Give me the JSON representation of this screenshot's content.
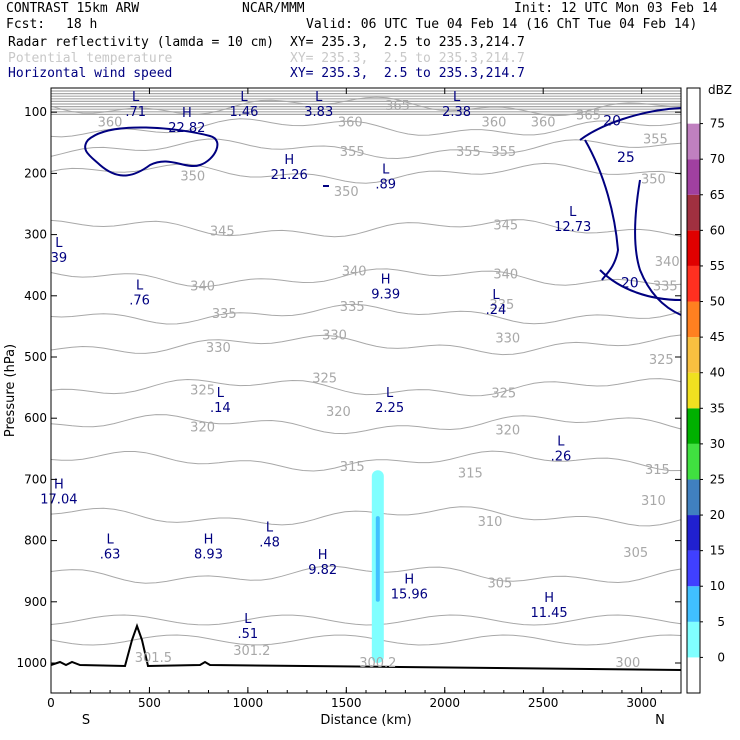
{
  "header": {
    "model": "CONTRAST 15km ARW",
    "center": "NCAR/MMM",
    "init": "Init: 12 UTC Mon 03 Feb 14",
    "fcst_label": "Fcst:",
    "fcst_value": "18 h",
    "valid": "Valid: 06 UTC Tue 04 Feb 14 (16 ChT Tue 04 Feb 14)"
  },
  "fields": [
    {
      "name": "Radar reflectivity (lamda = 10 cm)",
      "xy": "XY= 235.3,  2.5 to 235.3,214.7",
      "color": "#000000"
    },
    {
      "name": "Potential temperature",
      "xy": "XY= 235.3,  2.5 to 235.3,214.7",
      "color": "#c8c8c8"
    },
    {
      "name": "Horizontal wind speed",
      "xy": "XY= 235.3,  2.5 to 235.3,214.7",
      "color": "#000080"
    }
  ],
  "chart_data": {
    "type": "cross-section",
    "xlabel": "Distance (km)",
    "ylabel": "Pressure (hPa)",
    "x_ticks": [
      0,
      500,
      1000,
      1500,
      2000,
      2500,
      3000
    ],
    "y_ticks": [
      100,
      200,
      300,
      400,
      500,
      600,
      700,
      800,
      900,
      1000
    ],
    "xlim": [
      0,
      3200
    ],
    "ylim": [
      1050,
      50
    ],
    "x_ends": {
      "left": "S",
      "right": "N"
    },
    "colorbar": {
      "unit": "dBZ",
      "levels": [
        "0",
        "5",
        "10",
        "15",
        "20",
        "25",
        "30",
        "35",
        "40",
        "45",
        "50",
        "55",
        "60",
        "65",
        "70",
        "75"
      ],
      "colors": [
        "#ffffff",
        "#80ffff",
        "#40c0ff",
        "#4040ff",
        "#2020d0",
        "#4080c0",
        "#40e040",
        "#00b000",
        "#f0e020",
        "#f8c040",
        "#ff8020",
        "#ff3020",
        "#e00000",
        "#a03040",
        "#a040a0",
        "#c080c0",
        "#ffffff"
      ]
    },
    "theta_contours": [
      {
        "label": "365",
        "p": 90
      },
      {
        "label": "360",
        "p": 125
      },
      {
        "label": "355",
        "p": 160
      },
      {
        "label": "350",
        "p": 200
      },
      {
        "label": "345",
        "p": 290
      },
      {
        "label": "340",
        "p": 370
      },
      {
        "label": "335",
        "p": 430
      },
      {
        "label": "330",
        "p": 480
      },
      {
        "label": "325",
        "p": 550
      },
      {
        "label": "320",
        "p": 610
      },
      {
        "label": "315",
        "p": 670
      },
      {
        "label": "310",
        "p": 760
      },
      {
        "label": "305",
        "p": 855
      },
      {
        "label": "301.5",
        "p": 990
      },
      {
        "label": "301.2",
        "p": 975
      },
      {
        "label": "300.2",
        "p": 995
      },
      {
        "label": "300",
        "p": 1000
      }
    ],
    "theta_labels": [
      {
        "text": "360",
        "x": 300,
        "p": 117
      },
      {
        "text": "360",
        "x": 1520,
        "p": 117
      },
      {
        "text": "365",
        "x": 1760,
        "p": 90
      },
      {
        "text": "360",
        "x": 2250,
        "p": 117
      },
      {
        "text": "360",
        "x": 2500,
        "p": 117
      },
      {
        "text": "365",
        "x": 2730,
        "p": 105
      },
      {
        "text": "355",
        "x": 1530,
        "p": 165
      },
      {
        "text": "355",
        "x": 2120,
        "p": 165
      },
      {
        "text": "355",
        "x": 2300,
        "p": 165
      },
      {
        "text": "350",
        "x": 720,
        "p": 205
      },
      {
        "text": "350",
        "x": 1500,
        "p": 230
      },
      {
        "text": "345",
        "x": 870,
        "p": 295
      },
      {
        "text": "345",
        "x": 2310,
        "p": 285
      },
      {
        "text": "340",
        "x": 770,
        "p": 385
      },
      {
        "text": "340",
        "x": 1540,
        "p": 360
      },
      {
        "text": "340",
        "x": 2310,
        "p": 365
      },
      {
        "text": "335",
        "x": 880,
        "p": 430
      },
      {
        "text": "335",
        "x": 1530,
        "p": 418
      },
      {
        "text": "335",
        "x": 2290,
        "p": 415
      },
      {
        "text": "330",
        "x": 850,
        "p": 485
      },
      {
        "text": "330",
        "x": 1440,
        "p": 465
      },
      {
        "text": "330",
        "x": 2320,
        "p": 470
      },
      {
        "text": "325",
        "x": 770,
        "p": 555
      },
      {
        "text": "325",
        "x": 1390,
        "p": 535
      },
      {
        "text": "325",
        "x": 2300,
        "p": 560
      },
      {
        "text": "320",
        "x": 770,
        "p": 615
      },
      {
        "text": "320",
        "x": 1460,
        "p": 590
      },
      {
        "text": "320",
        "x": 2320,
        "p": 620
      },
      {
        "text": "315",
        "x": 1530,
        "p": 680
      },
      {
        "text": "315",
        "x": 2130,
        "p": 690
      },
      {
        "text": "310",
        "x": 2230,
        "p": 770
      },
      {
        "text": "305",
        "x": 2280,
        "p": 870
      },
      {
        "text": "301.5",
        "x": 520,
        "p": 992
      },
      {
        "text": "301.2",
        "x": 1020,
        "p": 980
      },
      {
        "text": "300.2",
        "x": 1660,
        "p": 1000
      },
      {
        "text": "300",
        "x": 2930,
        "p": 1000
      },
      {
        "text": "355",
        "x": 3070,
        "p": 145
      },
      {
        "text": "350",
        "x": 3060,
        "p": 210
      },
      {
        "text": "340",
        "x": 3130,
        "p": 345
      },
      {
        "text": "335",
        "x": 3120,
        "p": 385
      },
      {
        "text": "325",
        "x": 3100,
        "p": 505
      },
      {
        "text": "315",
        "x": 3080,
        "p": 685
      },
      {
        "text": "310",
        "x": 3060,
        "p": 735
      },
      {
        "text": "305",
        "x": 2970,
        "p": 820
      }
    ],
    "wind_contour_labels": [
      {
        "text": "20",
        "x": 2850,
        "p": 115
      },
      {
        "text": "25",
        "x": 2920,
        "p": 175
      },
      {
        "text": "20",
        "x": 2940,
        "p": 380
      }
    ],
    "extrema": [
      {
        "type": "L",
        "value": ".71",
        "x": 430,
        "p": 82
      },
      {
        "type": "H",
        "value": "22.82",
        "x": 690,
        "p": 108
      },
      {
        "type": "L",
        "value": "1.46",
        "x": 980,
        "p": 82
      },
      {
        "type": "L",
        "value": "3.83",
        "x": 1360,
        "p": 82
      },
      {
        "type": "L",
        "value": "2.38",
        "x": 2060,
        "p": 82
      },
      {
        "type": "H",
        "value": "21.26",
        "x": 1210,
        "p": 185
      },
      {
        "type": "L",
        "value": ".89",
        "x": 1700,
        "p": 200
      },
      {
        "type": "L",
        "value": "12.73",
        "x": 2650,
        "p": 270
      },
      {
        "type": "L",
        "value": "39",
        "x": 40,
        "p": 320
      },
      {
        "type": "L",
        "value": ".76",
        "x": 450,
        "p": 390
      },
      {
        "type": "H",
        "value": "9.39",
        "x": 1700,
        "p": 380
      },
      {
        "type": "L",
        "value": ".24",
        "x": 2260,
        "p": 405
      },
      {
        "type": "L",
        "value": ".14",
        "x": 860,
        "p": 565
      },
      {
        "type": "L",
        "value": "2.25",
        "x": 1720,
        "p": 565
      },
      {
        "type": "L",
        "value": ".26",
        "x": 2590,
        "p": 645
      },
      {
        "type": "H",
        "value": "17.04",
        "x": 40,
        "p": 715
      },
      {
        "type": "L",
        "value": ".48",
        "x": 1110,
        "p": 785
      },
      {
        "type": "L",
        "value": ".63",
        "x": 300,
        "p": 805
      },
      {
        "type": "H",
        "value": "8.93",
        "x": 800,
        "p": 805
      },
      {
        "type": "H",
        "value": "9.82",
        "x": 1380,
        "p": 830
      },
      {
        "type": "H",
        "value": "15.96",
        "x": 1820,
        "p": 870
      },
      {
        "type": "H",
        "value": "11.45",
        "x": 2530,
        "p": 900
      },
      {
        "type": "L",
        "value": ".51",
        "x": 1000,
        "p": 935
      }
    ]
  }
}
